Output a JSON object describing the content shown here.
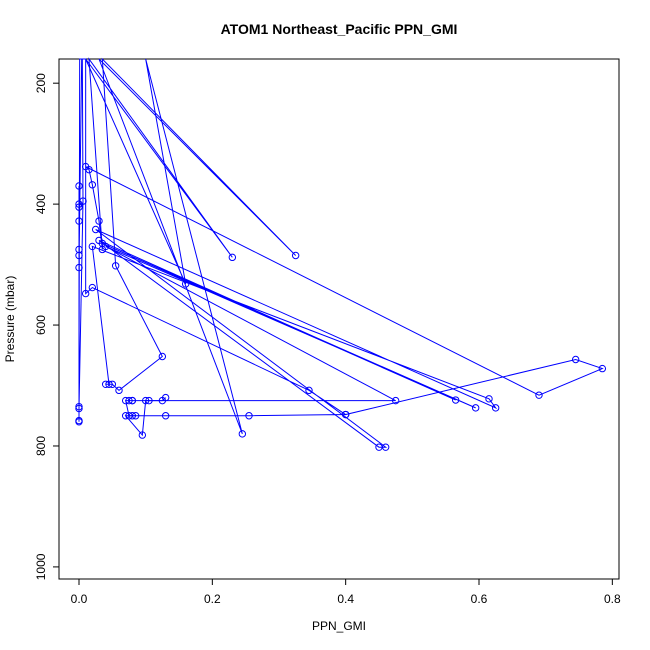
{
  "chart_data": {
    "type": "line",
    "title": "ATOM1 Northeast_Pacific PPN_GMI",
    "xlabel": "PPN_GMI",
    "ylabel": "Pressure (mbar)",
    "xlim": [
      -0.03,
      0.81
    ],
    "ylim": [
      1020,
      160
    ],
    "y_reversed": true,
    "x_ticks": [
      0.0,
      0.2,
      0.4,
      0.6,
      0.8
    ],
    "x_tick_labels": [
      "0.0",
      "0.2",
      "0.4",
      "0.6",
      "0.8"
    ],
    "y_ticks": [
      200,
      400,
      600,
      800,
      1000
    ],
    "y_tick_labels": [
      "200",
      "400",
      "600",
      "800",
      "1000"
    ],
    "grid": false,
    "legend": "none",
    "series_color": "#0000ff",
    "point_style": "open-circle",
    "series": [
      {
        "points": [
          {
            "x": 0.0,
            "y": 760
          },
          {
            "x": 0.0,
            "y": 735
          },
          {
            "x": 0.001,
            "y": 160
          },
          {
            "x": 0.002,
            "y": 160
          },
          {
            "x": 0.003,
            "y": 160
          },
          {
            "x": 0.004,
            "y": 160
          },
          {
            "x": 0.0,
            "y": 505
          },
          {
            "x": 0.0,
            "y": 485
          },
          {
            "x": 0.0,
            "y": 475
          },
          {
            "x": 0.0,
            "y": 428
          },
          {
            "x": 0.0,
            "y": 405
          },
          {
            "x": 0.0,
            "y": 400
          },
          {
            "x": 0.0,
            "y": 370
          },
          {
            "x": 0.0,
            "y": 758
          },
          {
            "x": 0.0,
            "y": 738
          },
          {
            "x": 0.006,
            "y": 395
          },
          {
            "x": 0.005,
            "y": 160
          },
          {
            "x": 0.006,
            "y": 160
          },
          {
            "x": 0.007,
            "y": 160
          },
          {
            "x": 0.01,
            "y": 160
          },
          {
            "x": 0.01,
            "y": 548
          },
          {
            "x": 0.02,
            "y": 538
          },
          {
            "x": 0.345,
            "y": 708
          },
          {
            "x": 0.4,
            "y": 748
          },
          {
            "x": 0.745,
            "y": 657
          },
          {
            "x": 0.785,
            "y": 672
          },
          {
            "x": 0.69,
            "y": 716
          },
          {
            "x": 0.01,
            "y": 338
          },
          {
            "x": 0.015,
            "y": 343
          },
          {
            "x": 0.02,
            "y": 368
          },
          {
            "x": 0.03,
            "y": 428
          },
          {
            "x": 0.035,
            "y": 475
          },
          {
            "x": 0.015,
            "y": 160
          },
          {
            "x": 0.23,
            "y": 488
          },
          {
            "x": 0.01,
            "y": 160
          },
          {
            "x": 0.16,
            "y": 532
          },
          {
            "x": 0.1,
            "y": 160
          },
          {
            "x": 0.245,
            "y": 780
          },
          {
            "x": 0.03,
            "y": 160
          },
          {
            "x": 0.325,
            "y": 485
          },
          {
            "x": 0.035,
            "y": 160
          },
          {
            "x": 0.055,
            "y": 502
          },
          {
            "x": 0.125,
            "y": 652
          },
          {
            "x": 0.06,
            "y": 708
          },
          {
            "x": 0.05,
            "y": 698
          },
          {
            "x": 0.04,
            "y": 698
          },
          {
            "x": 0.045,
            "y": 698
          },
          {
            "x": 0.02,
            "y": 470
          },
          {
            "x": 0.615,
            "y": 722
          },
          {
            "x": 0.625,
            "y": 737
          },
          {
            "x": 0.025,
            "y": 442
          },
          {
            "x": 0.46,
            "y": 802
          },
          {
            "x": 0.45,
            "y": 802
          },
          {
            "x": 0.03,
            "y": 460
          },
          {
            "x": 0.565,
            "y": 724
          },
          {
            "x": 0.035,
            "y": 465
          },
          {
            "x": 0.595,
            "y": 737
          },
          {
            "x": 0.04,
            "y": 470
          },
          {
            "x": 0.475,
            "y": 725
          },
          {
            "x": 0.08,
            "y": 725
          },
          {
            "x": 0.075,
            "y": 725
          },
          {
            "x": 0.08,
            "y": 725
          },
          {
            "x": 0.07,
            "y": 725
          },
          {
            "x": 0.075,
            "y": 750
          },
          {
            "x": 0.13,
            "y": 750
          },
          {
            "x": 0.255,
            "y": 750
          },
          {
            "x": 0.4,
            "y": 748
          }
        ]
      },
      {
        "points": [
          {
            "x": 0.085,
            "y": 750
          },
          {
            "x": 0.08,
            "y": 750
          },
          {
            "x": 0.07,
            "y": 750
          },
          {
            "x": 0.095,
            "y": 782
          },
          {
            "x": 0.1,
            "y": 725
          },
          {
            "x": 0.105,
            "y": 725
          },
          {
            "x": 0.125,
            "y": 725
          },
          {
            "x": 0.13,
            "y": 720
          }
        ]
      }
    ]
  }
}
